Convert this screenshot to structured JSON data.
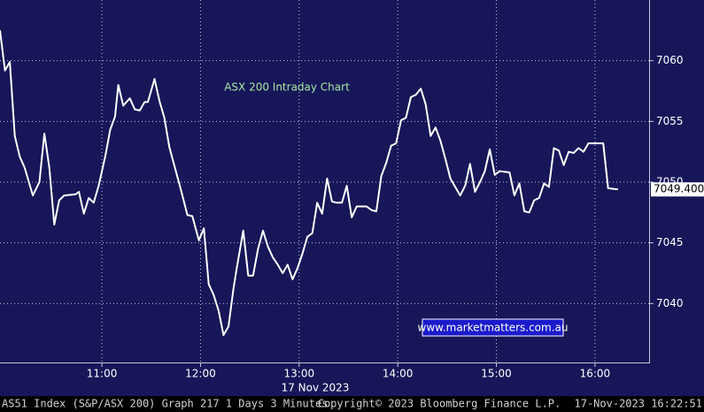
{
  "chart_data": {
    "type": "line",
    "title": "ASX 200 Intraday Chart",
    "annotation": "www.marketmatters.com.au",
    "x_label": "17 Nov 2023",
    "last_label": "7049.400",
    "footer_left": "AS51 Index (S&P/ASX 200) Graph 217 1 Days 3 Minutes",
    "footer_center": "Copyright© 2023 Bloomberg Finance L.P.",
    "footer_right": "17-Nov-2023 16:22:51",
    "xlim": [
      598,
      994
    ],
    "xticks": [
      {
        "value": 660,
        "label": "11:00"
      },
      {
        "value": 720,
        "label": "12:00"
      },
      {
        "value": 780,
        "label": "13:00"
      },
      {
        "value": 840,
        "label": "14:00"
      },
      {
        "value": 900,
        "label": "15:00"
      },
      {
        "value": 960,
        "label": "16:00"
      }
    ],
    "ylim": [
      7035,
      7065
    ],
    "yticks": [
      7040,
      7045,
      7050,
      7055,
      7060
    ],
    "grid": true,
    "series": [
      {
        "name": "AS51 Index",
        "color": "#ffffff",
        "x": [
          598,
          601,
          604,
          607,
          610,
          613,
          618,
          622,
          625,
          628,
          631,
          634,
          637,
          644,
          646,
          649,
          652,
          655,
          658,
          662,
          665,
          668,
          670,
          673,
          677,
          680,
          683,
          686,
          688,
          692,
          695,
          698,
          701,
          705,
          708,
          712,
          715,
          719,
          722,
          725,
          728,
          731,
          734,
          737,
          740,
          742,
          746,
          749,
          752,
          755,
          758,
          761,
          764,
          767,
          770,
          773,
          776,
          779,
          782,
          785,
          788,
          791,
          794,
          797,
          800,
          803,
          806,
          809,
          812,
          815,
          821,
          824,
          827,
          830,
          833,
          836,
          839,
          842,
          845,
          848,
          851,
          854,
          857,
          860,
          863,
          866,
          869,
          872,
          875,
          878,
          881,
          884,
          887,
          890,
          893,
          896,
          899,
          902,
          908,
          911,
          914,
          917,
          920,
          923,
          926,
          929,
          932,
          935,
          938,
          941,
          944,
          947,
          950,
          953,
          956,
          965,
          968,
          974
        ],
        "values": [
          7062.5,
          7059.2,
          7059.9,
          7053.8,
          7052.1,
          7051.2,
          7048.9,
          7050.0,
          7054.0,
          7051.2,
          7046.5,
          7048.5,
          7048.9,
          7049.0,
          7049.2,
          7047.4,
          7048.7,
          7048.3,
          7049.7,
          7052.1,
          7054.3,
          7055.4,
          7058.0,
          7056.3,
          7056.9,
          7056.0,
          7055.9,
          7056.6,
          7056.6,
          7058.5,
          7056.7,
          7055.3,
          7052.9,
          7050.9,
          7049.4,
          7047.3,
          7047.2,
          7045.2,
          7046.2,
          7041.6,
          7040.7,
          7039.4,
          7037.4,
          7038.1,
          7041.2,
          7042.9,
          7046.0,
          7042.3,
          7042.3,
          7044.5,
          7046.0,
          7044.7,
          7043.8,
          7043.2,
          7042.5,
          7043.2,
          7042.0,
          7042.9,
          7044.1,
          7045.5,
          7045.8,
          7048.3,
          7047.4,
          7050.3,
          7048.4,
          7048.3,
          7048.3,
          7049.7,
          7047.1,
          7048.0,
          7048.0,
          7047.7,
          7047.6,
          7050.5,
          7051.6,
          7053.0,
          7053.2,
          7055.1,
          7055.3,
          7057.0,
          7057.2,
          7057.7,
          7056.4,
          7053.8,
          7054.5,
          7053.4,
          7051.9,
          7050.3,
          7049.6,
          7048.9,
          7049.7,
          7051.5,
          7049.2,
          7050.0,
          7050.9,
          7052.7,
          7050.6,
          7050.9,
          7050.8,
          7048.9,
          7049.9,
          7047.6,
          7047.5,
          7048.5,
          7048.7,
          7049.9,
          7049.6,
          7052.8,
          7052.6,
          7051.4,
          7052.5,
          7052.4,
          7052.8,
          7052.5,
          7053.2,
          7053.2,
          7049.5,
          7049.4
        ]
      }
    ]
  }
}
